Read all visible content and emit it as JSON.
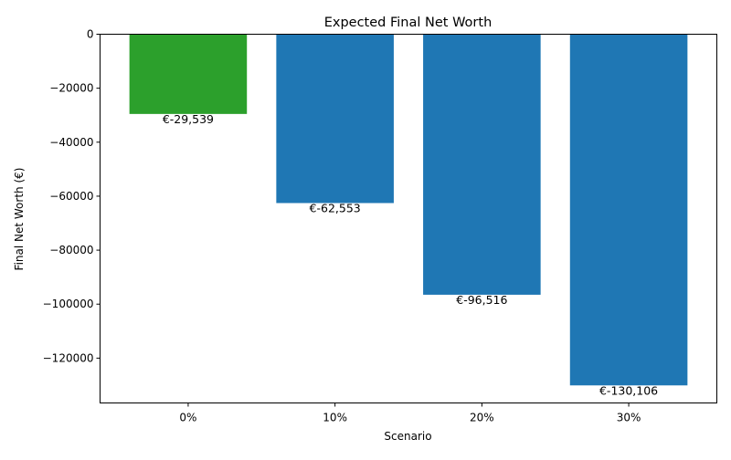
{
  "chart_data": {
    "type": "bar",
    "title": "Expected Final Net Worth",
    "xlabel": "Scenario",
    "ylabel": "Final Net Worth (€)",
    "categories": [
      "0%",
      "10%",
      "20%",
      "30%"
    ],
    "values": [
      -29539,
      -62553,
      -96516,
      -130106
    ],
    "data_labels": [
      "€-29,539",
      "€-62,553",
      "€-96,516",
      "€-130,106"
    ],
    "bar_colors": [
      "#2ca02c",
      "#1f77b4",
      "#1f77b4",
      "#1f77b4"
    ],
    "ylim": [
      -136611,
      0
    ],
    "yticks": [
      0,
      -20000,
      -40000,
      -60000,
      -80000,
      -100000,
      -120000
    ],
    "ytick_labels": [
      "0",
      "−20000",
      "−40000",
      "−60000",
      "−80000",
      "−100000",
      "−120000"
    ],
    "grid": false,
    "legend": "none"
  }
}
